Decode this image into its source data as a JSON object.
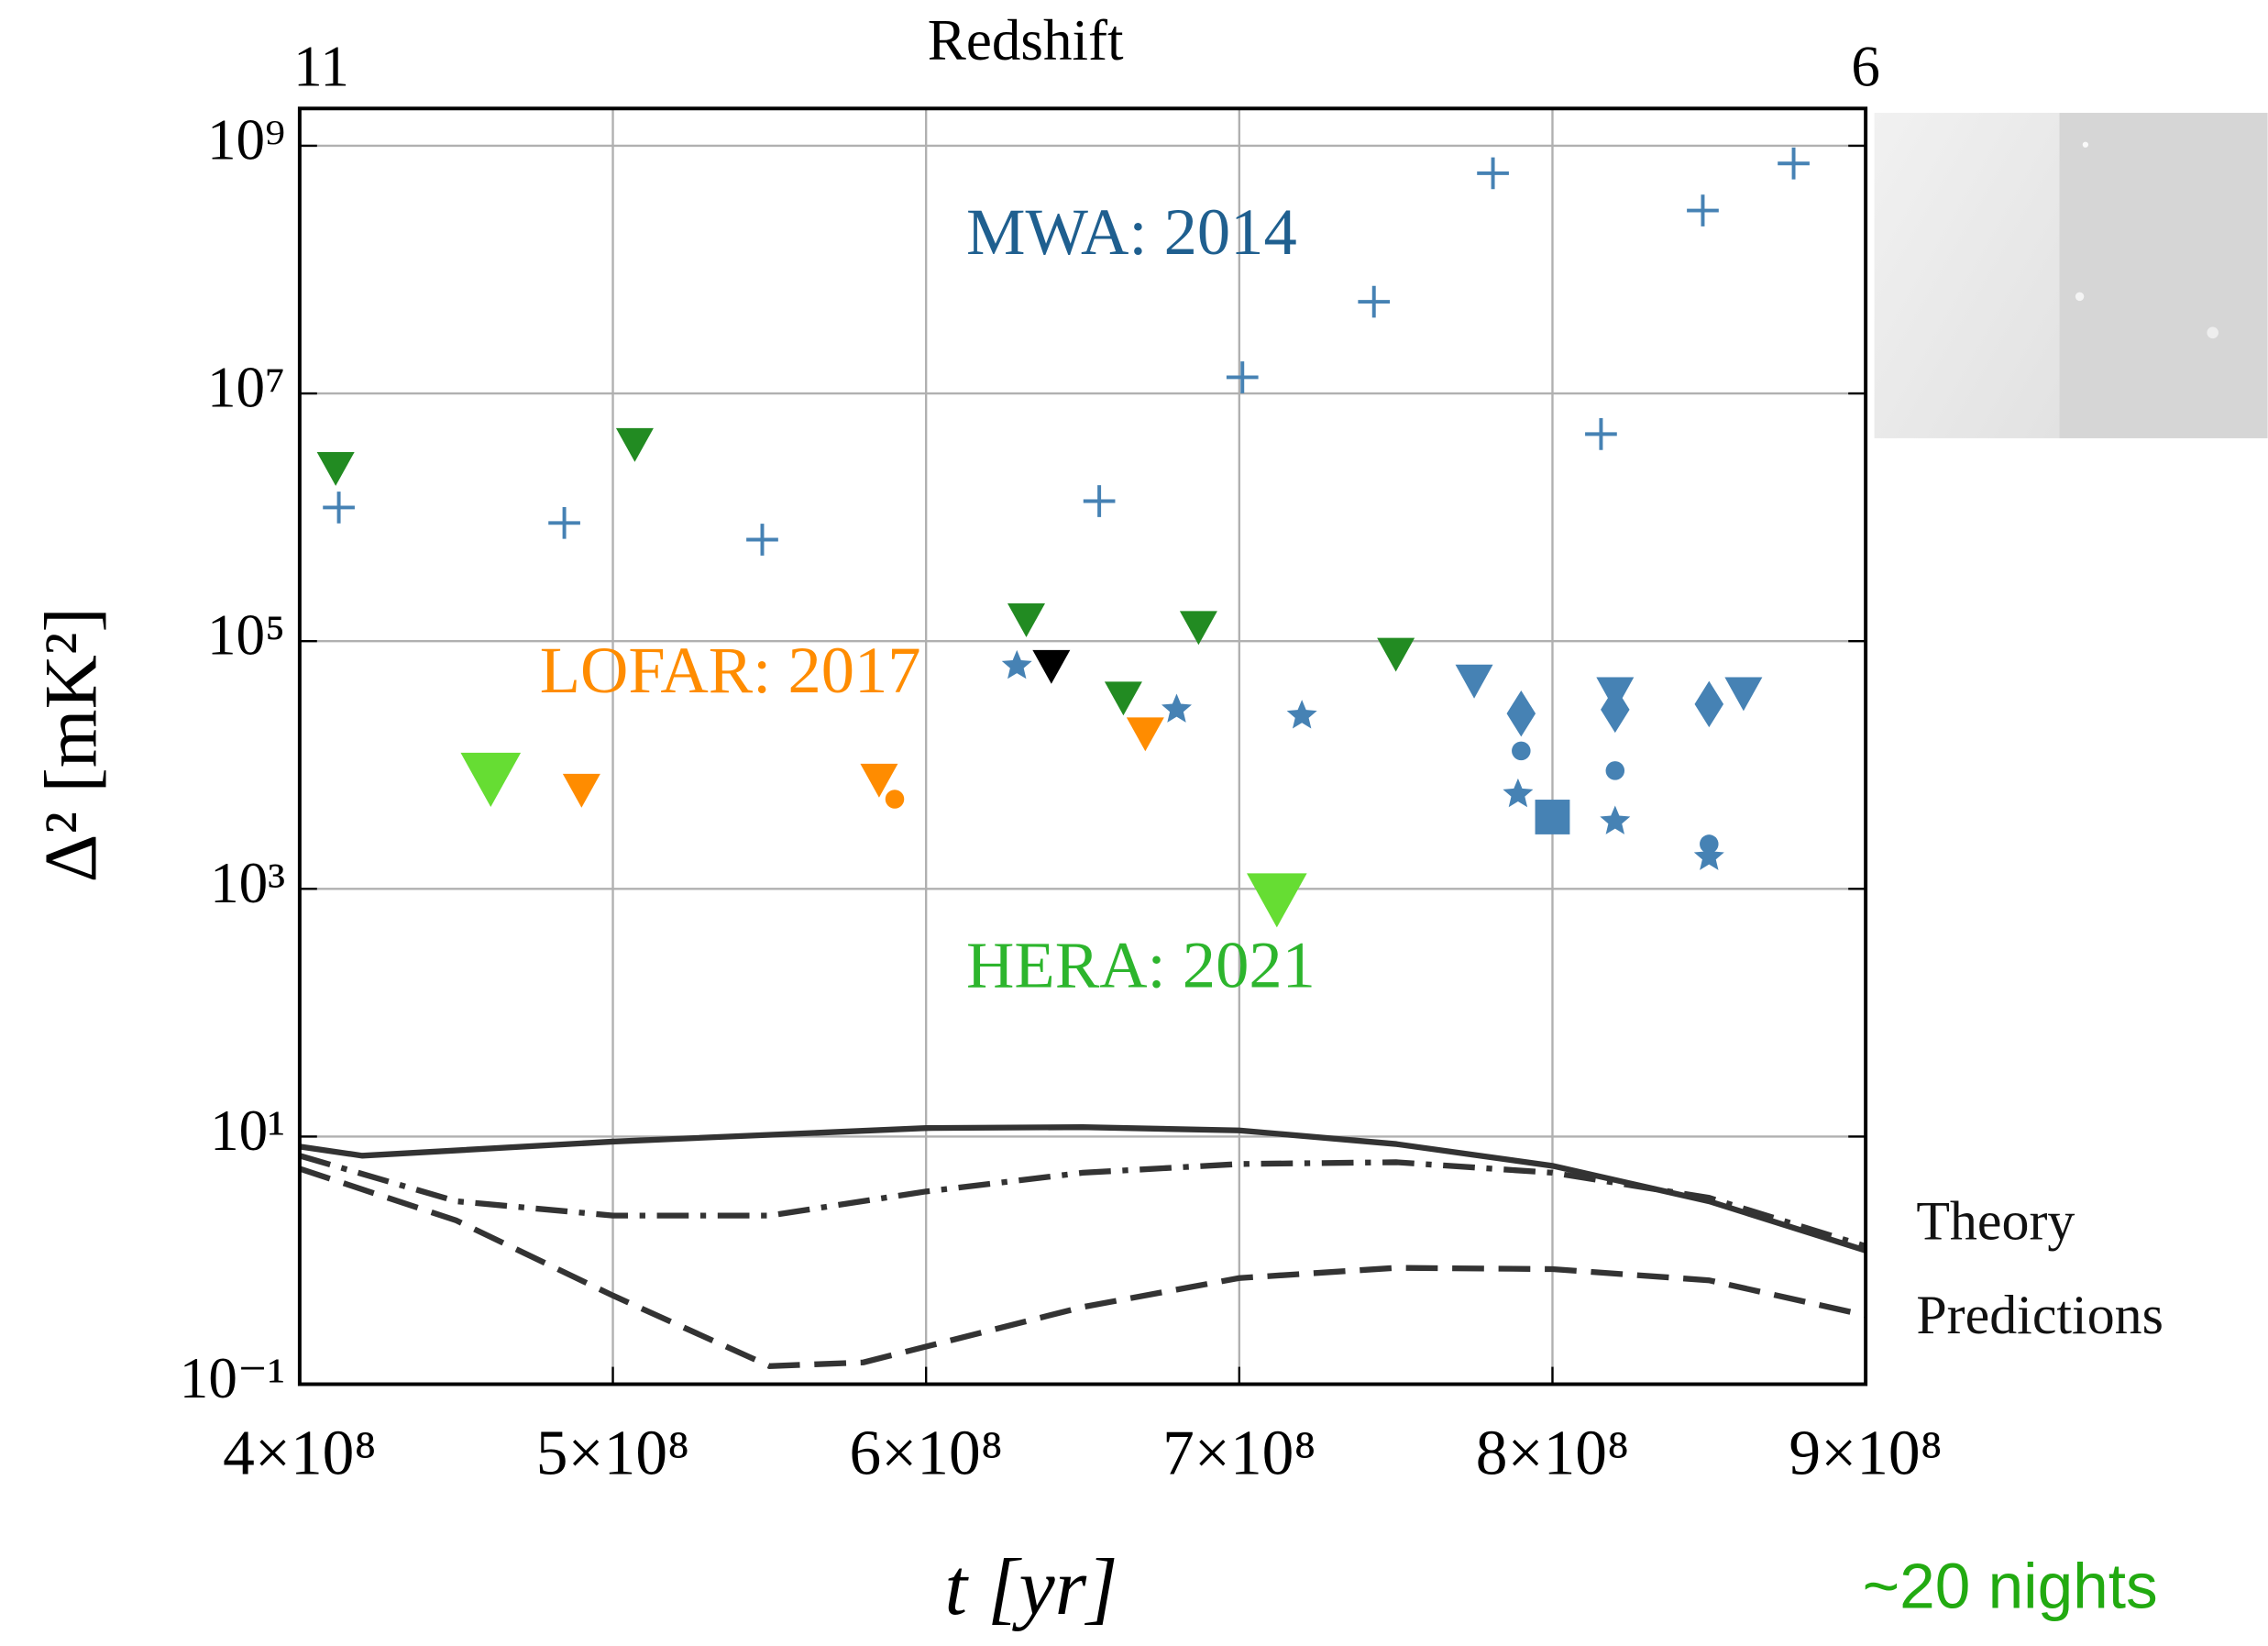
{
  "chart_data": {
    "type": "scatter",
    "xlabel": "t [yr]",
    "ylabel": "Δ² [mK²]",
    "x2label": "Redshift",
    "xlim": [
      400000000,
      900000000
    ],
    "xticks": [
      {
        "value": 400000000,
        "label": "4×10⁸"
      },
      {
        "value": 500000000,
        "label": "5×10⁸"
      },
      {
        "value": 600000000,
        "label": "6×10⁸"
      },
      {
        "value": 700000000,
        "label": "7×10⁸"
      },
      {
        "value": 800000000,
        "label": "8×10⁸"
      },
      {
        "value": 900000000,
        "label": "9×10⁸"
      }
    ],
    "x2lim": [
      11,
      6
    ],
    "x2ticks": [
      11,
      6
    ],
    "ylim": [
      0.1,
      2000000000
    ],
    "ylog": true,
    "yticks": [
      {
        "value": 0.1,
        "label": "10⁻¹"
      },
      {
        "value": 10,
        "label": "10¹"
      },
      {
        "value": 1000,
        "label": "10³"
      },
      {
        "value": 100000,
        "label": "10⁵"
      },
      {
        "value": 10000000,
        "label": "10⁷"
      },
      {
        "value": 1000000000,
        "label": "10⁹"
      }
    ],
    "grid": true,
    "series": [
      {
        "name": "MWA: 2014",
        "color": "#4682b4",
        "label_color": "#1f5f8f",
        "size": 1,
        "x": [
          412500000,
          484500000,
          547700000,
          655300000,
          701000000,
          743000000,
          781000000,
          815500000,
          848000000,
          877000000,
          629000000,
          680000000,
          720000000,
          789000000,
          820000000,
          850000000,
          775000000,
          820000000,
          861000000,
          790000000,
          820000000,
          850000000,
          790000000,
          820000000,
          850000000,
          800000000
        ],
        "values": [
          1200000,
          900000,
          660000,
          1350000,
          13500000,
          55000000,
          600000000,
          4700000,
          300000000,
          720000000,
          63000,
          28000,
          25000,
          5800,
          3500,
          1800,
          48000,
          38000,
          38000,
          26000,
          28000,
          31000,
          13000,
          9000,
          2300,
          3800
        ],
        "markers": [
          "plus",
          "plus",
          "plus",
          "plus",
          "plus",
          "plus",
          "plus",
          "plus",
          "plus",
          "plus",
          "star",
          "star",
          "star",
          "star",
          "star",
          "star",
          "triangle",
          "triangle",
          "triangle",
          "diamond",
          "diamond",
          "diamond",
          "circle",
          "circle",
          "circle",
          "square"
        ]
      },
      {
        "name": "LOFAR: 2017",
        "color": "#ff8c00",
        "label_color": "#ff8c00",
        "size": 1,
        "x": [
          490000000,
          585000000,
          670000000,
          590000000
        ],
        "values": [
          6300,
          7600,
          18000,
          5300
        ],
        "markers": [
          "triangle",
          "triangle",
          "triangle",
          "circle"
        ]
      },
      {
        "name": "HERA: 2021",
        "color": "#66dd33",
        "label_color": "#2db52d",
        "size": 1.6,
        "x": [
          461000000,
          712000000
        ],
        "values": [
          7800,
          830
        ],
        "markers": [
          "triangle",
          "triangle"
        ]
      },
      {
        "color": "#228b22",
        "size": 1,
        "x": [
          411500000,
          507000000,
          632000000,
          663000000,
          687000000,
          750000000
        ],
        "values": [
          2500000,
          3900000,
          150000,
          35000,
          130000,
          79000
        ],
        "markers": [
          "triangle",
          "triangle",
          "triangle",
          "triangle",
          "triangle",
          "triangle"
        ]
      },
      {
        "color": "#000000",
        "size": 1,
        "x": [
          640000000
        ],
        "values": [
          63000
        ],
        "markers": [
          "triangle"
        ]
      }
    ],
    "lines": [
      {
        "color": "#333333",
        "dash": "solid",
        "x": [
          400000000,
          420000000,
          500000000,
          600000000,
          650000000,
          700000000,
          750000000,
          800000000,
          850000000,
          900000000
        ],
        "values": [
          8.3,
          7,
          9.1,
          11.7,
          11.9,
          11.2,
          8.7,
          5.8,
          3,
          1.2
        ]
      },
      {
        "color": "#333333",
        "dash": "dashdot",
        "x": [
          400000000,
          450000000,
          500000000,
          550000000,
          600000000,
          650000000,
          700000000,
          750000000,
          800000000,
          850000000,
          900000000
        ],
        "values": [
          7,
          3,
          2.3,
          2.3,
          3.6,
          5.1,
          6,
          6.2,
          5.1,
          3.2,
          1.3
        ]
      },
      {
        "color": "#333333",
        "dash": "dashed",
        "x": [
          400000000,
          450000000,
          500000000,
          550000000,
          580000000,
          650000000,
          700000000,
          750000000,
          800000000,
          850000000,
          900000000
        ],
        "values": [
          5.5,
          2.1,
          0.52,
          0.14,
          0.15,
          0.42,
          0.72,
          0.87,
          0.85,
          0.69,
          0.36
        ]
      }
    ],
    "annotations": [
      {
        "text": "Theory",
        "color": "#111111"
      },
      {
        "text": "Predictions",
        "color": "#111111"
      },
      {
        "text": "~20 nights",
        "color": "#22aa11"
      }
    ]
  }
}
